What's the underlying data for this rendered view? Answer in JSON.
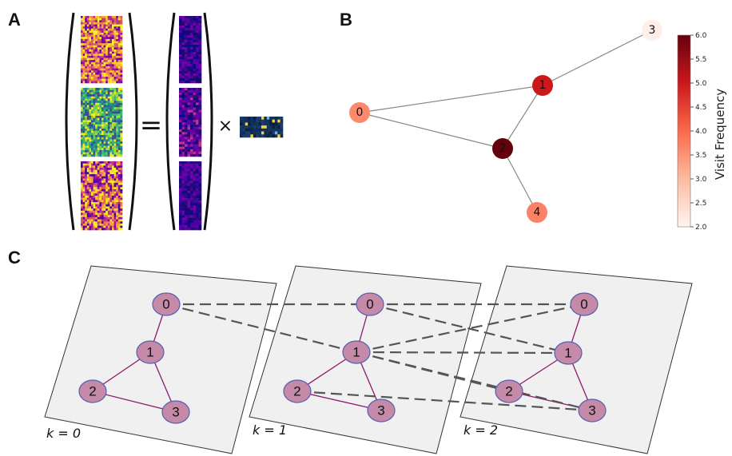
{
  "panels": {
    "a": {
      "letter": "A",
      "equals": "=",
      "times": "×"
    },
    "b": {
      "letter": "B",
      "nodes": [
        {
          "id": "0",
          "label": "0",
          "value": 3.6
        },
        {
          "id": "1",
          "label": "1",
          "value": 5.0
        },
        {
          "id": "2",
          "label": "2",
          "value": 6.0
        },
        {
          "id": "3",
          "label": "3",
          "value": 2.1
        },
        {
          "id": "4",
          "label": "4",
          "value": 3.7
        }
      ],
      "edges": [
        [
          "0",
          "1"
        ],
        [
          "0",
          "2"
        ],
        [
          "1",
          "2"
        ],
        [
          "1",
          "3"
        ],
        [
          "2",
          "4"
        ]
      ],
      "colorbar": {
        "label": "Visit Frequency",
        "min": 2.0,
        "max": 6.0,
        "ticks": [
          "2.0",
          "2.5",
          "3.0",
          "3.5",
          "4.0",
          "4.5",
          "5.0",
          "5.5",
          "6.0"
        ],
        "colors": [
          "#fff5f0",
          "#fcbba1",
          "#fb6a4a",
          "#cb181d",
          "#67000d"
        ]
      }
    },
    "c": {
      "letter": "C",
      "layers": [
        {
          "k_label": "k = 0"
        },
        {
          "k_label": "k = 1"
        },
        {
          "k_label": "k = 2"
        }
      ],
      "nodes": [
        "0",
        "1",
        "2",
        "3"
      ],
      "intra_edges": [
        [
          "0",
          "1"
        ],
        [
          "1",
          "2"
        ],
        [
          "1",
          "3"
        ],
        [
          "2",
          "3"
        ]
      ],
      "inter_edges": [
        {
          "from": [
            0,
            "0"
          ],
          "to": [
            1,
            "0"
          ]
        },
        {
          "from": [
            0,
            "0"
          ],
          "to": [
            1,
            "1"
          ]
        },
        {
          "from": [
            1,
            "0"
          ],
          "to": [
            2,
            "0"
          ]
        },
        {
          "from": [
            1,
            "0"
          ],
          "to": [
            2,
            "1"
          ]
        },
        {
          "from": [
            1,
            "1"
          ],
          "to": [
            2,
            "0"
          ]
        },
        {
          "from": [
            1,
            "1"
          ],
          "to": [
            2,
            "1"
          ]
        },
        {
          "from": [
            1,
            "1"
          ],
          "to": [
            2,
            "2"
          ]
        },
        {
          "from": [
            1,
            "1"
          ],
          "to": [
            2,
            "3"
          ]
        },
        {
          "from": [
            1,
            "2"
          ],
          "to": [
            2,
            "3"
          ]
        }
      ],
      "colors": {
        "node_fill": "#c48aa8",
        "node_stroke": "#5560b0",
        "intra_edge": "#8b1a6e",
        "inter_edge": "#555555",
        "plane": "#f0f0f0"
      }
    }
  }
}
